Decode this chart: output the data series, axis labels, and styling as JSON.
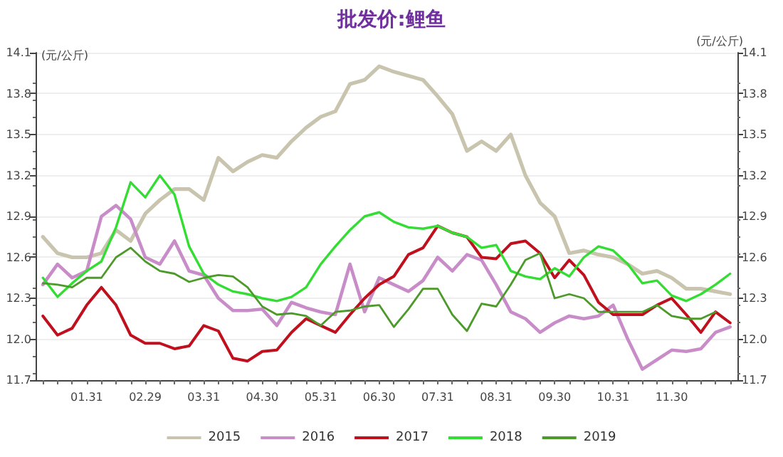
{
  "chart_data": {
    "type": "line",
    "title": "批发价:鲤鱼",
    "ylabel": "(元/公斤)",
    "y2label": "(元/公斤)",
    "categories": [
      null,
      null,
      null,
      "01.31",
      null,
      null,
      null,
      "02.29",
      null,
      null,
      null,
      "03.31",
      null,
      null,
      null,
      "04.30",
      null,
      null,
      null,
      "05.31",
      null,
      null,
      null,
      "06.30",
      null,
      null,
      null,
      "07.31",
      null,
      null,
      null,
      "08.31",
      null,
      null,
      null,
      "09.30",
      null,
      null,
      null,
      "10.31",
      null,
      null,
      null,
      "11.30",
      null,
      null,
      null,
      null
    ],
    "series": [
      {
        "name": "2015",
        "color": "#c8c4ae",
        "values": [
          12.75,
          12.63,
          12.6,
          12.6,
          12.63,
          12.8,
          12.72,
          12.92,
          13.02,
          13.1,
          13.1,
          13.02,
          13.33,
          13.23,
          13.3,
          13.35,
          13.33,
          13.45,
          13.55,
          13.63,
          13.67,
          13.87,
          13.9,
          14.0,
          13.96,
          13.93,
          13.9,
          13.78,
          13.65,
          13.38,
          13.45,
          13.38,
          13.5,
          13.2,
          13.0,
          12.9,
          12.63,
          12.65,
          12.62,
          12.6,
          12.55,
          12.48,
          12.5,
          12.45,
          12.37,
          12.37,
          12.35,
          12.33
        ]
      },
      {
        "name": "2016",
        "color": "#c88cc8",
        "values": [
          12.4,
          12.55,
          12.45,
          12.5,
          12.9,
          12.98,
          12.88,
          12.6,
          12.55,
          12.72,
          12.5,
          12.47,
          12.3,
          12.21,
          12.21,
          12.22,
          12.1,
          12.27,
          12.23,
          12.2,
          12.18,
          12.55,
          12.2,
          12.45,
          12.4,
          12.35,
          12.43,
          12.6,
          12.5,
          12.62,
          12.58,
          12.4,
          12.2,
          12.15,
          12.05,
          12.12,
          12.17,
          12.15,
          12.17,
          12.25,
          12.0,
          11.78,
          11.85,
          11.92,
          11.91,
          11.93,
          12.05,
          12.09
        ]
      },
      {
        "name": "2017",
        "color": "#c0101e",
        "values": [
          12.17,
          12.03,
          12.08,
          12.25,
          12.38,
          12.25,
          12.03,
          11.97,
          11.97,
          11.93,
          11.95,
          12.1,
          12.06,
          11.86,
          11.84,
          11.91,
          11.92,
          12.05,
          12.15,
          12.1,
          12.05,
          12.18,
          12.3,
          12.4,
          12.46,
          12.62,
          12.67,
          12.83,
          12.78,
          12.75,
          12.6,
          12.59,
          12.7,
          12.72,
          12.63,
          12.45,
          12.58,
          12.47,
          12.27,
          12.18,
          12.18,
          12.18,
          12.25,
          12.3,
          12.18,
          12.05,
          12.2,
          12.12
        ]
      },
      {
        "name": "2018",
        "color": "#33dd33",
        "values": [
          12.45,
          12.31,
          12.41,
          12.5,
          12.57,
          12.82,
          13.15,
          13.04,
          13.2,
          13.06,
          12.68,
          12.48,
          12.4,
          12.35,
          12.33,
          12.3,
          12.28,
          12.31,
          12.38,
          12.55,
          12.68,
          12.8,
          12.9,
          12.93,
          12.86,
          12.82,
          12.81,
          12.83,
          12.78,
          12.75,
          12.67,
          12.69,
          12.5,
          12.46,
          12.44,
          12.52,
          12.46,
          12.6,
          12.68,
          12.65,
          12.55,
          12.41,
          12.43,
          12.32,
          12.28,
          12.33,
          12.4,
          12.48
        ]
      },
      {
        "name": "2019",
        "color": "#4c9a2a",
        "values": [
          12.41,
          12.4,
          12.38,
          12.45,
          12.45,
          12.6,
          12.67,
          12.57,
          12.5,
          12.48,
          12.42,
          12.45,
          12.47,
          12.46,
          12.38,
          12.24,
          12.18,
          12.19,
          12.17,
          12.1,
          12.2,
          12.21,
          12.24,
          12.25,
          12.09,
          12.22,
          12.37,
          12.37,
          12.18,
          12.06,
          12.26,
          12.24,
          12.4,
          12.58,
          12.63,
          12.3,
          12.33,
          12.3,
          12.2,
          12.2,
          12.2,
          12.2,
          12.25,
          12.17,
          12.15,
          12.15,
          12.2,
          null
        ]
      }
    ],
    "ylim": [
      11.7,
      14.1
    ],
    "yticks": [
      11.7,
      {
        "value": 12,
        "label": "12.0"
      },
      12.3,
      12.6,
      12.9,
      13.2,
      13.5,
      13.8,
      14.1
    ],
    "y2lim": [
      11.7,
      14.1
    ],
    "y2ticks": [
      11.7,
      {
        "value": 12,
        "label": "12.0"
      },
      12.3,
      12.6,
      12.9,
      13.2,
      13.5,
      13.8,
      14.1
    ],
    "grid": "y",
    "legend": "bottom",
    "marker": "none",
    "line_style": "solid"
  }
}
